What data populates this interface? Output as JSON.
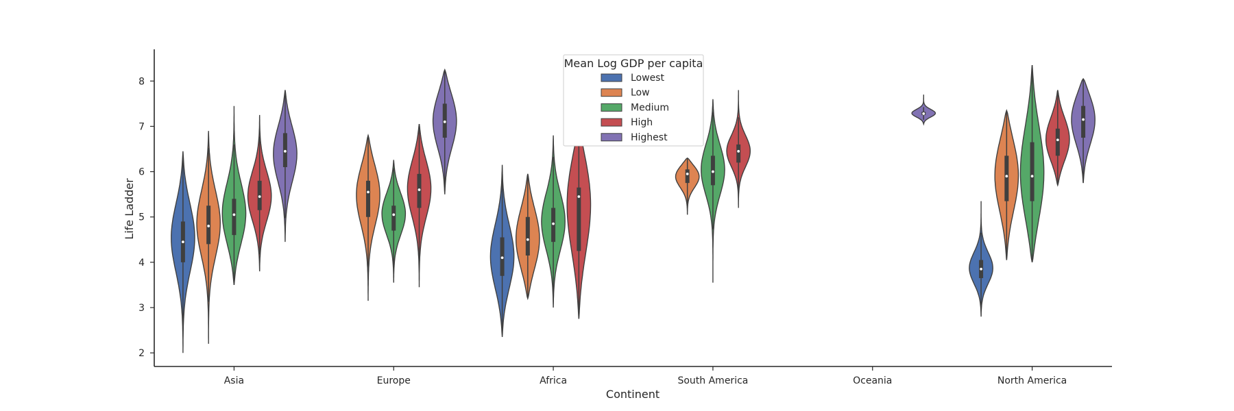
{
  "chart_data": {
    "type": "violin",
    "title": "",
    "xlabel": "Continent",
    "ylabel": "Life Ladder",
    "ylim": [
      1.7,
      8.7
    ],
    "yticks": [
      2,
      3,
      4,
      5,
      6,
      7,
      8
    ],
    "categories": [
      "Asia",
      "Europe",
      "Africa",
      "South America",
      "Oceania",
      "North America"
    ],
    "grid": false,
    "legend": {
      "title": "Mean Log GDP per capita",
      "position": "top-center"
    },
    "series": [
      {
        "name": "Lowest",
        "color": "#4c72b0",
        "violins": [
          {
            "category": "Asia",
            "min": 2.0,
            "max": 6.45,
            "q1": 4.0,
            "median": 4.45,
            "q3": 4.9,
            "mode": 4.6
          },
          {
            "category": "Africa",
            "min": 2.35,
            "max": 6.15,
            "q1": 3.7,
            "median": 4.1,
            "q3": 4.55,
            "mode": 4.1
          },
          {
            "category": "North America",
            "min": 2.8,
            "max": 5.35,
            "q1": 3.65,
            "median": 3.85,
            "q3": 4.05,
            "mode": 3.85
          }
        ]
      },
      {
        "name": "Low",
        "color": "#dd8452",
        "violins": [
          {
            "category": "Asia",
            "min": 2.2,
            "max": 6.9,
            "q1": 4.4,
            "median": 4.8,
            "q3": 5.25,
            "mode": 4.9
          },
          {
            "category": "Europe",
            "min": 3.15,
            "max": 6.8,
            "q1": 5.0,
            "median": 5.55,
            "q3": 5.8,
            "mode": 5.6
          },
          {
            "category": "Africa",
            "min": 3.2,
            "max": 5.95,
            "q1": 4.15,
            "median": 4.5,
            "q3": 5.0,
            "mode": 4.5
          },
          {
            "category": "South America",
            "min": 5.05,
            "max": 6.3,
            "q1": 5.75,
            "median": 5.95,
            "q3": 6.05,
            "mode": 5.95
          },
          {
            "category": "North America",
            "min": 4.05,
            "max": 7.35,
            "q1": 5.35,
            "median": 5.9,
            "q3": 6.35,
            "mode": 6.0
          }
        ]
      },
      {
        "name": "Medium",
        "color": "#55a868",
        "violins": [
          {
            "category": "Asia",
            "min": 3.5,
            "max": 7.45,
            "q1": 4.6,
            "median": 5.05,
            "q3": 5.4,
            "mode": 5.0
          },
          {
            "category": "Europe",
            "min": 3.55,
            "max": 6.25,
            "q1": 4.7,
            "median": 5.05,
            "q3": 5.25,
            "mode": 5.1
          },
          {
            "category": "Africa",
            "min": 3.0,
            "max": 6.8,
            "q1": 4.45,
            "median": 4.85,
            "q3": 5.2,
            "mode": 4.9
          },
          {
            "category": "South America",
            "min": 3.55,
            "max": 7.6,
            "q1": 5.7,
            "median": 6.0,
            "q3": 6.35,
            "mode": 6.1
          },
          {
            "category": "North America",
            "min": 4.0,
            "max": 8.35,
            "q1": 5.35,
            "median": 5.9,
            "q3": 6.65,
            "mode": 5.9
          }
        ]
      },
      {
        "name": "High",
        "color": "#c44e52",
        "violins": [
          {
            "category": "Asia",
            "min": 3.8,
            "max": 7.25,
            "q1": 5.15,
            "median": 5.45,
            "q3": 5.8,
            "mode": 5.45
          },
          {
            "category": "Europe",
            "min": 3.45,
            "max": 7.05,
            "q1": 5.2,
            "median": 5.6,
            "q3": 5.95,
            "mode": 5.7
          },
          {
            "category": "Africa",
            "min": 2.75,
            "max": 6.9,
            "q1": 4.25,
            "median": 5.45,
            "q3": 5.65,
            "mode": 5.5
          },
          {
            "category": "South America",
            "min": 5.2,
            "max": 7.8,
            "q1": 6.2,
            "median": 6.45,
            "q3": 6.6,
            "mode": 6.45
          },
          {
            "category": "North America",
            "min": 5.7,
            "max": 7.8,
            "q1": 6.35,
            "median": 6.7,
            "q3": 6.95,
            "mode": 6.7
          }
        ]
      },
      {
        "name": "Highest",
        "color": "#8172b3",
        "violins": [
          {
            "category": "Asia",
            "min": 4.45,
            "max": 7.8,
            "q1": 6.1,
            "median": 6.45,
            "q3": 6.85,
            "mode": 6.45
          },
          {
            "category": "Europe",
            "min": 5.5,
            "max": 8.25,
            "q1": 6.75,
            "median": 7.1,
            "q3": 7.5,
            "mode": 7.2
          },
          {
            "category": "Oceania",
            "min": 7.05,
            "max": 7.7,
            "q1": 7.25,
            "median": 7.28,
            "q3": 7.32,
            "mode": 7.28
          },
          {
            "category": "North America",
            "min": 5.75,
            "max": 8.05,
            "q1": 6.75,
            "median": 7.15,
            "q3": 7.45,
            "mode": 7.25
          }
        ]
      }
    ]
  }
}
